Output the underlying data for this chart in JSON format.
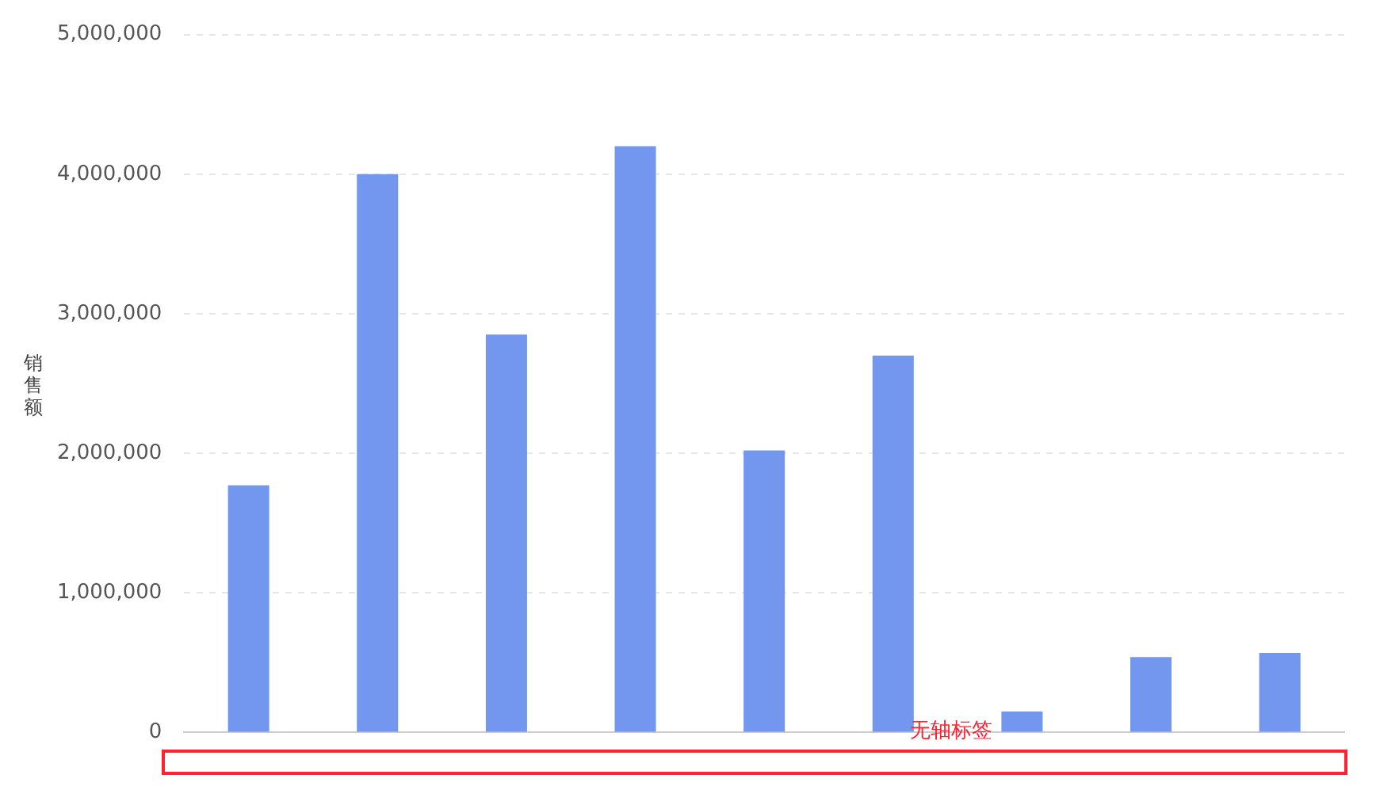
{
  "chart_data": {
    "type": "bar",
    "ylabel": "销售额",
    "categories": [
      null,
      null,
      null,
      null,
      null,
      null,
      null,
      null,
      null
    ],
    "values": [
      1770000,
      4000000,
      2850000,
      4200000,
      2020000,
      2700000,
      150000,
      540000,
      570000
    ],
    "color": "#7396ee",
    "ylim": [
      0,
      5000000
    ],
    "yticks": [
      0,
      {
        "value": 1000000,
        "label": "1,000,000"
      },
      {
        "value": 2000000,
        "label": "2,000,000"
      },
      {
        "value": 3000000,
        "label": "3,000,000"
      },
      {
        "value": 4000000,
        "label": "4,000,000"
      },
      {
        "value": 5000000,
        "label": "5,000,000"
      }
    ],
    "grid": "y",
    "legend": false,
    "annotations": [
      "无轴标签"
    ]
  }
}
